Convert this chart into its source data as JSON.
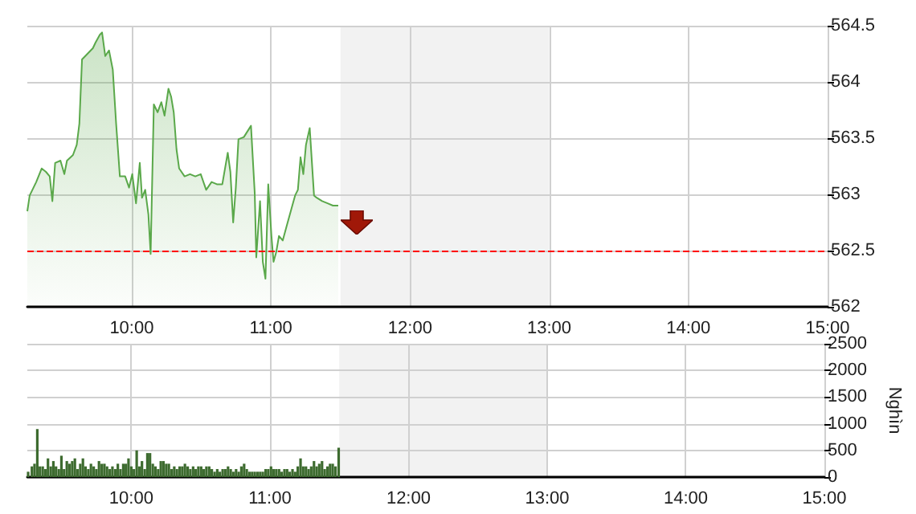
{
  "chart_data": [
    {
      "type": "area",
      "xlim": [
        9.25,
        15
      ],
      "xticks": [
        {
          "value": 10,
          "label": "10:00"
        },
        {
          "value": 11,
          "label": "11:00"
        },
        {
          "value": 12,
          "label": "12:00"
        },
        {
          "value": 13,
          "label": "13:00"
        },
        {
          "value": 14,
          "label": "14:00"
        },
        {
          "value": 15,
          "label": "15:00"
        }
      ],
      "ylim": [
        562,
        564.5
      ],
      "yticks": [
        562,
        562.5,
        563,
        563.5,
        564,
        564.5
      ],
      "grid": true,
      "ref_lines": [
        {
          "axis": "y",
          "value": 562.5,
          "color": "#ff0000",
          "line_style": "dashed"
        }
      ],
      "bands": [
        {
          "axis": "x",
          "from": 11.5,
          "to": 13,
          "color": "#f2f2f2"
        }
      ],
      "series": [
        {
          "color": "#5aa84a",
          "x": [
            9.25,
            9.267,
            9.314,
            9.353,
            9.384,
            9.411,
            9.43,
            9.45,
            9.488,
            9.516,
            9.535,
            9.578,
            9.605,
            9.624,
            9.643,
            9.682,
            9.721,
            9.74,
            9.771,
            9.787,
            9.81,
            9.837,
            9.864,
            9.888,
            9.915,
            9.953,
            9.981,
            10.004,
            10.031,
            10.058,
            10.074,
            10.097,
            10.12,
            10.136,
            10.159,
            10.186,
            10.213,
            10.236,
            10.264,
            10.283,
            10.302,
            10.322,
            10.341,
            10.38,
            10.419,
            10.457,
            10.496,
            10.535,
            10.574,
            10.612,
            10.651,
            10.69,
            10.709,
            10.729,
            10.748,
            10.767,
            10.806,
            10.857,
            10.884,
            10.895,
            10.922,
            10.942,
            10.961,
            10.981,
            11.004,
            11.019,
            11.039,
            11.058,
            11.085,
            11.116,
            11.136,
            11.174,
            11.194,
            11.213,
            11.233,
            11.252,
            11.279,
            11.31,
            11.329,
            11.368,
            11.407,
            11.446,
            11.484
          ],
          "values": [
            562.85,
            562.99,
            563.11,
            563.23,
            563.2,
            563.16,
            562.94,
            563.28,
            563.3,
            563.18,
            563.3,
            563.35,
            563.44,
            563.63,
            564.2,
            564.25,
            564.3,
            564.35,
            564.42,
            564.44,
            564.23,
            564.28,
            564.11,
            563.63,
            563.16,
            563.16,
            563.06,
            563.18,
            562.92,
            563.28,
            562.97,
            563.04,
            562.82,
            562.47,
            563.8,
            563.73,
            563.82,
            563.7,
            563.94,
            563.87,
            563.73,
            563.4,
            563.23,
            563.16,
            563.18,
            563.16,
            563.18,
            563.04,
            563.11,
            563.09,
            563.09,
            563.37,
            563.2,
            562.75,
            563.06,
            563.49,
            563.51,
            563.61,
            563.01,
            562.44,
            562.94,
            562.4,
            562.25,
            563.09,
            562.63,
            562.4,
            562.49,
            562.63,
            562.59,
            562.73,
            562.82,
            562.99,
            563.04,
            563.33,
            563.18,
            563.44,
            563.59,
            562.99,
            562.97,
            562.94,
            562.92,
            562.9,
            562.9
          ]
        }
      ]
    },
    {
      "type": "bar",
      "xlim": [
        9.25,
        15
      ],
      "xticks": [
        {
          "value": 10,
          "label": "10:00"
        },
        {
          "value": 11,
          "label": "11:00"
        },
        {
          "value": 12,
          "label": "12:00"
        },
        {
          "value": 13,
          "label": "13:00"
        },
        {
          "value": 14,
          "label": "14:00"
        },
        {
          "value": 15,
          "label": "15:00"
        }
      ],
      "ylim": [
        0,
        2500
      ],
      "yticks": [
        0,
        500,
        1000,
        1500,
        2000,
        2500
      ],
      "ylabel": "Nghìn",
      "grid": true,
      "bands": [
        {
          "axis": "x",
          "from": 11.5,
          "to": 13,
          "color": "#f2f2f2"
        }
      ],
      "series": [
        {
          "color": "#3d6b2f",
          "x": [
            9.256,
            9.283,
            9.302,
            9.322,
            9.341,
            9.361,
            9.38,
            9.399,
            9.419,
            9.438,
            9.457,
            9.477,
            9.496,
            9.515,
            9.535,
            9.554,
            9.574,
            9.593,
            9.612,
            9.632,
            9.651,
            9.67,
            9.69,
            9.709,
            9.729,
            9.748,
            9.767,
            9.787,
            9.806,
            9.825,
            9.845,
            9.864,
            9.884,
            9.903,
            9.922,
            9.942,
            9.961,
            9.98,
            10.0,
            10.019,
            10.039,
            10.058,
            10.077,
            10.097,
            10.116,
            10.135,
            10.155,
            10.174,
            10.194,
            10.213,
            10.232,
            10.252,
            10.271,
            10.291,
            10.31,
            10.329,
            10.349,
            10.368,
            10.387,
            10.407,
            10.426,
            10.446,
            10.465,
            10.484,
            10.504,
            10.523,
            10.542,
            10.562,
            10.581,
            10.601,
            10.62,
            10.639,
            10.659,
            10.678,
            10.698,
            10.717,
            10.736,
            10.756,
            10.775,
            10.794,
            10.814,
            10.833,
            10.853,
            10.872,
            10.891,
            10.911,
            10.93,
            10.949,
            10.969,
            10.988,
            11.008,
            11.027,
            11.046,
            11.066,
            11.085,
            11.105,
            11.124,
            11.143,
            11.163,
            11.182,
            11.201,
            11.221,
            11.24,
            11.26,
            11.279,
            11.298,
            11.318,
            11.337,
            11.356,
            11.376,
            11.395,
            11.415,
            11.434,
            11.453,
            11.473,
            11.496
          ],
          "values": [
            100,
            200,
            250,
            900,
            200,
            200,
            150,
            350,
            200,
            300,
            200,
            150,
            400,
            150,
            300,
            250,
            300,
            350,
            150,
            250,
            350,
            200,
            150,
            250,
            200,
            150,
            300,
            250,
            250,
            200,
            150,
            200,
            150,
            250,
            150,
            250,
            250,
            350,
            200,
            150,
            500,
            200,
            300,
            150,
            450,
            450,
            250,
            200,
            150,
            300,
            300,
            250,
            250,
            150,
            200,
            150,
            200,
            200,
            250,
            200,
            150,
            200,
            150,
            200,
            200,
            150,
            200,
            200,
            150,
            100,
            150,
            100,
            150,
            150,
            200,
            150,
            100,
            150,
            100,
            200,
            250,
            150,
            100,
            100,
            100,
            100,
            100,
            100,
            150,
            150,
            200,
            150,
            150,
            150,
            100,
            150,
            150,
            100,
            150,
            100,
            200,
            350,
            200,
            200,
            150,
            200,
            300,
            200,
            250,
            300,
            150,
            200,
            250,
            250,
            200,
            550
          ]
        }
      ]
    }
  ]
}
